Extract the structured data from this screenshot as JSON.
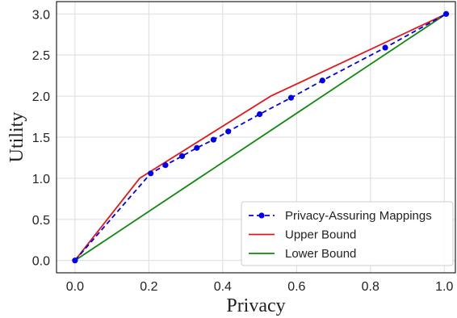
{
  "chart_data": {
    "type": "line",
    "xlabel": "Privacy",
    "ylabel": "Utility",
    "xlim": [
      -0.05,
      1.03
    ],
    "ylim": [
      -0.15,
      3.15
    ],
    "x_ticks": [
      0.0,
      0.2,
      0.4,
      0.6,
      0.8,
      1.0
    ],
    "x_tick_labels": [
      "0.0",
      "0.2",
      "0.4",
      "0.6",
      "0.8",
      "1.0"
    ],
    "y_ticks": [
      0.0,
      0.5,
      1.0,
      1.5,
      2.0,
      2.5,
      3.0
    ],
    "y_tick_labels": [
      "0.0",
      "0.5",
      "1.0",
      "1.5",
      "2.0",
      "2.5",
      "3.0"
    ],
    "grid": true,
    "legend_position": "bottom-right",
    "series": [
      {
        "name": "Privacy-Assuring Mappings",
        "color": "#0000ee",
        "style": "dashed",
        "marker": "circle",
        "x": [
          0.0,
          0.205,
          0.245,
          0.29,
          0.33,
          0.375,
          0.415,
          0.5,
          0.585,
          0.67,
          0.84,
          1.005
        ],
        "y": [
          0.0,
          1.06,
          1.16,
          1.27,
          1.37,
          1.47,
          1.57,
          1.78,
          1.98,
          2.19,
          2.59,
          3.0
        ]
      },
      {
        "name": "Upper Bound",
        "color": "#e8141a",
        "style": "solid",
        "marker": "none",
        "x": [
          0.0,
          0.175,
          0.53,
          1.005
        ],
        "y": [
          0.0,
          1.0,
          2.0,
          3.0
        ]
      },
      {
        "name": "Lower Bound",
        "color": "#118811",
        "style": "solid",
        "marker": "none",
        "x": [
          0.0,
          1.005
        ],
        "y": [
          0.0,
          3.0
        ]
      }
    ]
  }
}
